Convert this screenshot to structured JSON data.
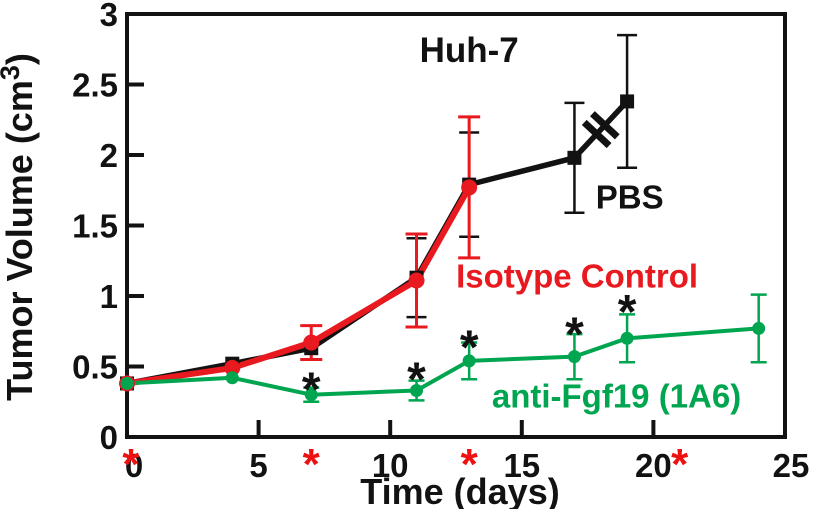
{
  "figure": {
    "title": "Huh-7",
    "x_axis": {
      "label": "Time (days)",
      "ticks": [
        0,
        5,
        10,
        15,
        20,
        25
      ],
      "range": [
        0,
        25
      ]
    },
    "y_axis": {
      "label_base": "Tumor Volume (cm",
      "label_sup": "3",
      "label_close": ")",
      "ticks": [
        0,
        0.5,
        1,
        1.5,
        2,
        2.5,
        3
      ],
      "range": [
        0,
        3
      ]
    }
  },
  "colors": {
    "background": "#ffffff",
    "frame": "#121212",
    "black": "#121212",
    "red": "#e8191f",
    "green": "#00a550"
  },
  "chart_data": {
    "type": "line",
    "title": "Huh-7",
    "xlabel": "Time (days)",
    "ylabel": "Tumor Volume (cm3)",
    "xlim": [
      0,
      25
    ],
    "ylim": [
      0,
      3
    ],
    "grid": false,
    "legend_position": "inline-annotations",
    "series": [
      {
        "name": "PBS",
        "color": "#121212",
        "marker": "square",
        "x": [
          0,
          4,
          7,
          11,
          13,
          17,
          19
        ],
        "y": [
          0.38,
          0.52,
          0.63,
          1.13,
          1.79,
          1.98,
          2.38
        ],
        "yerr": [
          0,
          0,
          0,
          0.28,
          0.37,
          0.39,
          0.47
        ],
        "axis_break_between_x": [
          17,
          19
        ]
      },
      {
        "name": "Isotype Control",
        "color": "#e8191f",
        "marker": "circle",
        "x": [
          0,
          4,
          7,
          11,
          13
        ],
        "y": [
          0.38,
          0.49,
          0.67,
          1.11,
          1.77
        ],
        "yerr": [
          0,
          0,
          0.12,
          0.33,
          0.5
        ]
      },
      {
        "name": "anti-Fgf19 (1A6)",
        "color": "#00a550",
        "marker": "circle",
        "x": [
          0,
          4,
          7,
          11,
          13,
          17,
          19,
          24
        ],
        "y": [
          0.38,
          0.42,
          0.3,
          0.33,
          0.54,
          0.57,
          0.7,
          0.77
        ],
        "yerr": [
          0,
          0,
          0.05,
          0.07,
          0.13,
          0.16,
          0.17,
          0.24
        ]
      }
    ],
    "annotations": [
      {
        "text": "Huh-7",
        "x": 13,
        "y": 2.66,
        "color": "#121212",
        "role": "plot-title"
      },
      {
        "text": "PBS",
        "x": 19.1,
        "y": 1.62,
        "color": "#121212",
        "role": "series-label"
      },
      {
        "text": "Isotype Control",
        "x": 17.1,
        "y": 1.06,
        "color": "#e8191f",
        "role": "series-label"
      },
      {
        "text": "anti-Fgf19 (1A6)",
        "x": 18.6,
        "y": 0.21,
        "color": "#00a550",
        "role": "series-label"
      }
    ],
    "significance_asterisks": {
      "symbol": "*",
      "color": "#121212",
      "points": [
        [
          7,
          0.4
        ],
        [
          11,
          0.47
        ],
        [
          13,
          0.7
        ],
        [
          17,
          0.79
        ],
        [
          19,
          0.95
        ]
      ]
    },
    "dosing_asterisks": {
      "symbol": "*",
      "color": "#ee1111",
      "position": "below-x-axis",
      "x_days": [
        0.15,
        7,
        13,
        21
      ]
    }
  }
}
